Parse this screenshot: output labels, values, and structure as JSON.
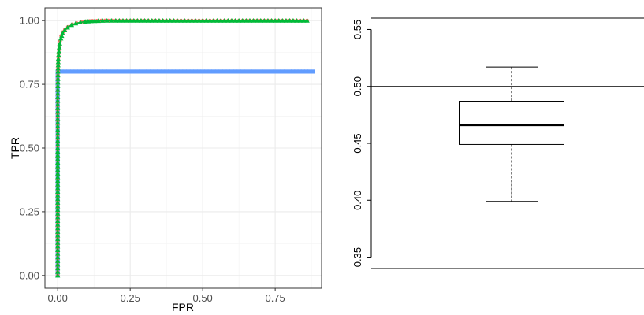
{
  "chart_data": [
    {
      "type": "line",
      "xlabel": "FPR",
      "ylabel": "TPR",
      "xlim": [
        -0.044,
        0.91
      ],
      "ylim": [
        -0.05,
        1.05
      ],
      "grid": true,
      "x_ticks": [
        "0.00",
        "0.25",
        "0.50",
        "0.75"
      ],
      "y_ticks": [
        "0.00",
        "0.25",
        "0.50",
        "0.75",
        "1.00"
      ],
      "series": [
        {
          "marker": "circle",
          "color": "#f8766d",
          "x": [
            0,
            0,
            0,
            0,
            0,
            0,
            0,
            0,
            0,
            0.001,
            0.002,
            0.003,
            0.005,
            0.008,
            0.012,
            0.018,
            0.025,
            0.035,
            0.05,
            0.065,
            0.08,
            0.1,
            0.12,
            0.15,
            0.2,
            0.3,
            0.4,
            0.5,
            0.6,
            0.7,
            0.8,
            0.86
          ],
          "y": [
            0.0,
            0.08,
            0.15,
            0.25,
            0.35,
            0.45,
            0.55,
            0.65,
            0.74,
            0.8,
            0.84,
            0.87,
            0.9,
            0.92,
            0.94,
            0.955,
            0.965,
            0.975,
            0.985,
            0.99,
            0.994,
            0.997,
            0.999,
            1.0,
            1.0,
            1.0,
            1.0,
            1.0,
            1.0,
            1.0,
            1.0,
            1.0
          ]
        },
        {
          "marker": "triangle",
          "color": "#00ba38",
          "x": [
            0,
            0,
            0,
            0,
            0,
            0,
            0,
            0,
            0.001,
            0.002,
            0.004,
            0.007,
            0.011,
            0.017,
            0.024,
            0.034,
            0.048,
            0.062,
            0.078,
            0.095,
            0.115,
            0.14,
            0.17,
            0.2,
            0.3,
            0.4,
            0.5,
            0.6,
            0.7,
            0.8,
            0.86
          ],
          "y": [
            0.0,
            0.1,
            0.2,
            0.3,
            0.4,
            0.5,
            0.6,
            0.7,
            0.8,
            0.85,
            0.88,
            0.91,
            0.93,
            0.95,
            0.962,
            0.973,
            0.983,
            0.989,
            0.993,
            0.996,
            0.998,
            0.999,
            1.0,
            1.0,
            1.0,
            1.0,
            1.0,
            1.0,
            1.0,
            1.0,
            1.0
          ]
        },
        {
          "marker": "square",
          "color": "#619cff",
          "x": [
            0,
            0,
            0,
            0,
            0,
            0,
            0,
            0,
            0,
            0.1,
            0.2,
            0.3,
            0.4,
            0.5,
            0.6,
            0.7,
            0.8,
            0.88
          ],
          "y": [
            0.0,
            0.1,
            0.2,
            0.3,
            0.4,
            0.5,
            0.6,
            0.7,
            0.8,
            0.8,
            0.8,
            0.8,
            0.8,
            0.8,
            0.8,
            0.8,
            0.8,
            0.8
          ]
        }
      ]
    },
    {
      "type": "box",
      "ylim": [
        0.34,
        0.56
      ],
      "y_ticks": [
        "0.35",
        "0.40",
        "0.45",
        "0.50",
        "0.55"
      ],
      "reference_line": 0.5,
      "box": {
        "whisker_low": 0.399,
        "q1": 0.449,
        "median": 0.466,
        "q3": 0.487,
        "whisker_high": 0.517
      }
    }
  ]
}
